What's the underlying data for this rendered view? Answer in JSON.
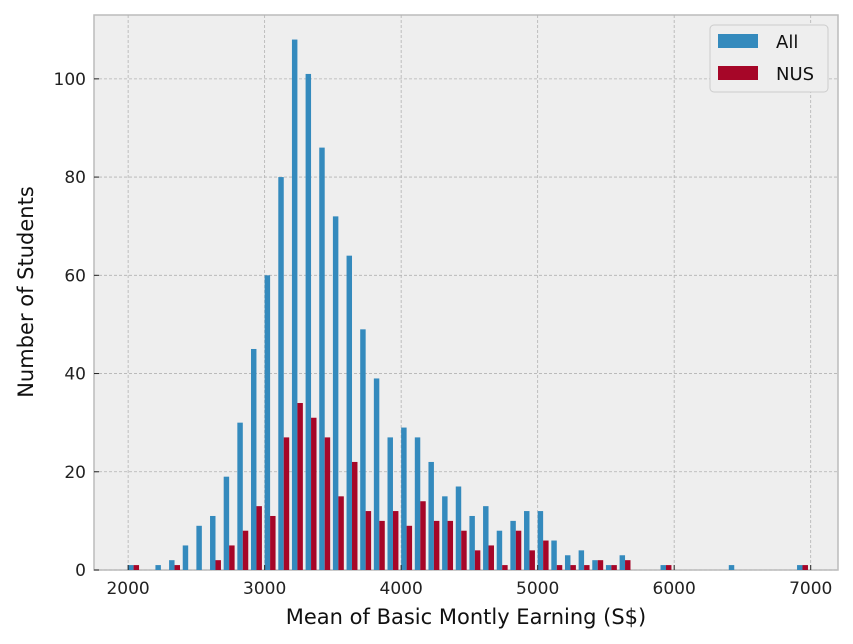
{
  "chart_data": {
    "type": "bar",
    "title": "",
    "xlabel": "Mean of Basic Montly Earning (S$)",
    "ylabel": "Number of Students",
    "xlim": [
      1750,
      7200
    ],
    "ylim": [
      0,
      113
    ],
    "xticks": [
      2000,
      3000,
      4000,
      5000,
      6000,
      7000
    ],
    "yticks": [
      0,
      20,
      40,
      60,
      80,
      100
    ],
    "grid": true,
    "legend_position": "top-right",
    "bin_start": 2000,
    "bin_width": 100,
    "series": [
      {
        "name": "All",
        "color": "#348ABD",
        "values": [
          1,
          0,
          1,
          2,
          5,
          9,
          11,
          19,
          30,
          45,
          60,
          80,
          108,
          101,
          86,
          72,
          64,
          49,
          39,
          27,
          29,
          27,
          22,
          15,
          17,
          11,
          13,
          8,
          10,
          12,
          12,
          6,
          3,
          4,
          2,
          1,
          3,
          0,
          0,
          1,
          0,
          0,
          0,
          0,
          1,
          0,
          0,
          0,
          0,
          1
        ]
      },
      {
        "name": "NUS",
        "color": "#A60628",
        "values": [
          1,
          0,
          0,
          1,
          0,
          0,
          2,
          5,
          8,
          13,
          11,
          27,
          34,
          31,
          27,
          15,
          22,
          12,
          10,
          12,
          9,
          14,
          10,
          10,
          8,
          4,
          5,
          1,
          8,
          4,
          6,
          1,
          1,
          1,
          2,
          1,
          2,
          0,
          0,
          1,
          0,
          0,
          0,
          0,
          0,
          0,
          0,
          0,
          0,
          1
        ]
      }
    ]
  }
}
